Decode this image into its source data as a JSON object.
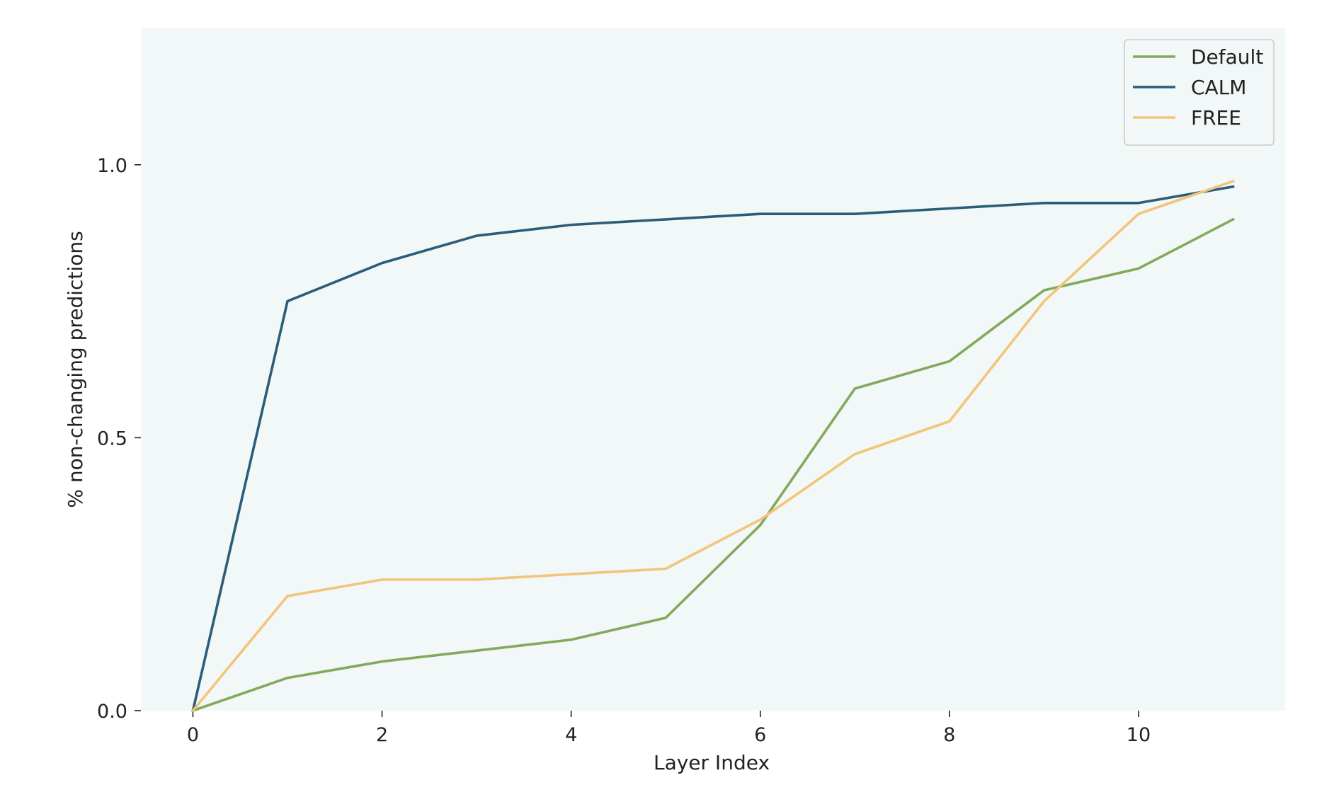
{
  "chart_data": {
    "type": "line",
    "title": "",
    "xlabel": "Layer Index",
    "ylabel": "% non-changing predictions",
    "x": [
      0,
      1,
      2,
      3,
      4,
      5,
      6,
      7,
      8,
      9,
      10,
      11
    ],
    "xlim": [
      -0.55,
      11.55
    ],
    "ylim": [
      0.0,
      1.25
    ],
    "xticks": [
      0,
      2,
      4,
      6,
      8,
      10
    ],
    "xtick_labels": [
      "0",
      "2",
      "4",
      "6",
      "8",
      "10"
    ],
    "yticks": [
      0.0,
      0.5,
      1.0
    ],
    "ytick_labels": [
      "0.0",
      "0.5",
      "1.0"
    ],
    "grid": false,
    "legend_position": "top-right",
    "plot_background": "#f2f7f7",
    "series": [
      {
        "name": "Default",
        "color": "#82aa5a",
        "values": [
          0.0,
          0.06,
          0.09,
          0.11,
          0.13,
          0.17,
          0.34,
          0.59,
          0.64,
          0.77,
          0.81,
          0.9
        ]
      },
      {
        "name": "CALM",
        "color": "#2b5d7a",
        "values": [
          0.0,
          0.75,
          0.82,
          0.87,
          0.89,
          0.9,
          0.91,
          0.91,
          0.92,
          0.93,
          0.93,
          0.96
        ]
      },
      {
        "name": "FREE",
        "color": "#f2c57b",
        "values": [
          0.0,
          0.21,
          0.24,
          0.24,
          0.25,
          0.26,
          0.35,
          0.47,
          0.53,
          0.75,
          0.91,
          0.97
        ]
      }
    ]
  }
}
